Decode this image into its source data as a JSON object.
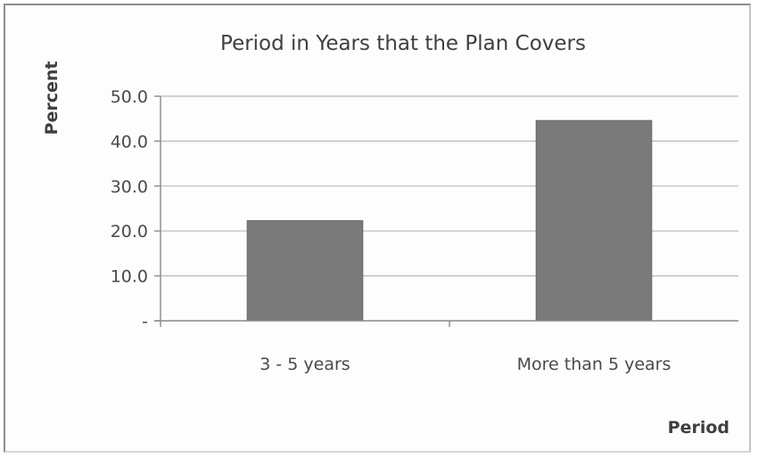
{
  "chart_data": {
    "type": "bar",
    "title": "Period in Years that the Plan Covers",
    "xlabel": "Period",
    "ylabel": "Percent",
    "categories": [
      "3 - 5 years",
      "More than 5 years"
    ],
    "values": [
      22.3,
      44.6
    ],
    "ylim": [
      0,
      50
    ],
    "yticks": [
      0,
      10,
      20,
      30,
      40,
      50
    ],
    "ytick_labels": [
      "-",
      "10.0",
      "20.0",
      "30.0",
      "40.0",
      "50.0"
    ],
    "grid": true,
    "legend": "none",
    "bar_color": "#7a7a7a"
  }
}
